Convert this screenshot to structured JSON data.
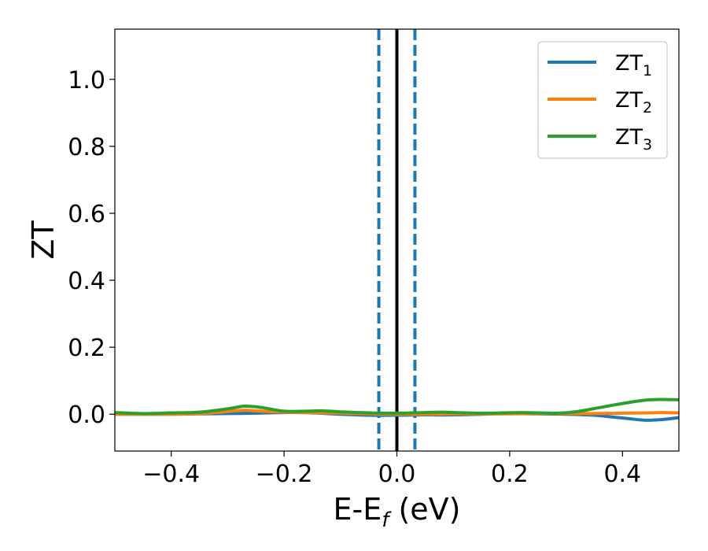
{
  "chart_data": {
    "type": "line",
    "xlabel": {
      "main": "E-E",
      "sub": "f",
      "tail": " (eV)"
    },
    "ylabel": "ZT",
    "xlim": [
      -0.5,
      0.5
    ],
    "ylim": [
      -0.11,
      1.15
    ],
    "xticks": [
      {
        "value": -0.4,
        "label": "−0.4"
      },
      {
        "value": -0.2,
        "label": "−0.2"
      },
      {
        "value": 0.0,
        "label": "0.0"
      },
      {
        "value": 0.2,
        "label": "0.2"
      },
      {
        "value": 0.4,
        "label": "0.4"
      }
    ],
    "yticks": [
      {
        "value": 0.0,
        "label": "0.0"
      },
      {
        "value": 0.2,
        "label": "0.2"
      },
      {
        "value": 0.4,
        "label": "0.4"
      },
      {
        "value": 0.6,
        "label": "0.6"
      },
      {
        "value": 0.8,
        "label": "0.8"
      },
      {
        "value": 1.0,
        "label": "1.0"
      }
    ],
    "grid": false,
    "legend_position": "top-right",
    "vlines": [
      {
        "x": 0.0,
        "color": "#000000",
        "style": "solid"
      },
      {
        "x": -0.032,
        "color": "#1f77b4",
        "style": "dashed"
      },
      {
        "x": 0.032,
        "color": "#1f77b4",
        "style": "dashed"
      }
    ],
    "series": [
      {
        "name": "ZT",
        "sub": "1",
        "color": "#1f77b4",
        "x": [
          -0.5,
          -0.45,
          -0.4,
          -0.35,
          -0.3,
          -0.25,
          -0.2,
          -0.15,
          -0.1,
          -0.05,
          0.0,
          0.05,
          0.1,
          0.15,
          0.2,
          0.25,
          0.3,
          0.35,
          0.38,
          0.41,
          0.44,
          0.47,
          0.5
        ],
        "y": [
          0.0,
          0.0,
          0.0,
          0.001,
          0.002,
          0.003,
          0.005,
          0.004,
          0.0,
          -0.003,
          -0.003,
          -0.002,
          -0.002,
          0.0,
          0.002,
          0.001,
          0.0,
          -0.003,
          -0.008,
          -0.013,
          -0.018,
          -0.016,
          -0.01
        ]
      },
      {
        "name": "ZT",
        "sub": "2",
        "color": "#ff7f0e",
        "x": [
          -0.5,
          -0.45,
          -0.4,
          -0.35,
          -0.3,
          -0.27,
          -0.25,
          -0.2,
          -0.15,
          -0.1,
          -0.05,
          0.0,
          0.05,
          0.1,
          0.15,
          0.2,
          0.25,
          0.3,
          0.35,
          0.4,
          0.45,
          0.47,
          0.5
        ],
        "y": [
          0.0,
          0.0,
          0.0,
          0.002,
          0.008,
          0.012,
          0.01,
          0.006,
          0.005,
          0.003,
          0.001,
          0.0,
          0.0,
          0.001,
          0.001,
          0.001,
          0.002,
          0.002,
          0.002,
          0.003,
          0.004,
          0.005,
          0.004
        ]
      },
      {
        "name": "ZT",
        "sub": "3",
        "color": "#2ca02c",
        "x": [
          -0.5,
          -0.45,
          -0.4,
          -0.35,
          -0.3,
          -0.27,
          -0.24,
          -0.2,
          -0.16,
          -0.13,
          -0.1,
          -0.05,
          0.0,
          0.05,
          0.08,
          0.12,
          0.16,
          0.22,
          0.28,
          0.32,
          0.36,
          0.4,
          0.44,
          0.47,
          0.5
        ],
        "y": [
          0.005,
          0.002,
          0.004,
          0.006,
          0.016,
          0.024,
          0.02,
          0.009,
          0.009,
          0.01,
          0.007,
          0.004,
          0.003,
          0.005,
          0.006,
          0.004,
          0.003,
          0.005,
          0.003,
          0.008,
          0.02,
          0.032,
          0.042,
          0.044,
          0.043
        ]
      }
    ]
  }
}
